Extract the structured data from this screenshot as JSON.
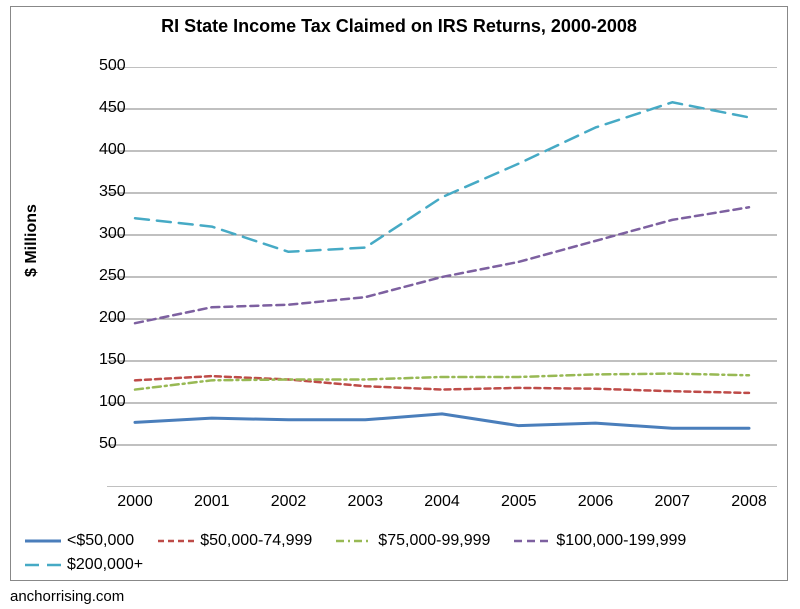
{
  "chart": {
    "type": "line",
    "title": "RI State Income Tax Claimed on IRS Returns,\n2000-2008",
    "title_fontsize": 18,
    "title_fontweight": "bold",
    "background_color": "#ffffff",
    "border_color": "#888888",
    "x": {
      "values": [
        2000,
        2001,
        2002,
        2003,
        2004,
        2005,
        2006,
        2007,
        2008
      ],
      "labels": [
        "2000",
        "2001",
        "2002",
        "2003",
        "2004",
        "2005",
        "2006",
        "2007",
        "2008"
      ],
      "label_fontsize": 16
    },
    "y": {
      "title": "$ Millions",
      "title_fontsize": 16,
      "title_fontweight": "bold",
      "min": 0,
      "max": 500,
      "tick_step": 50,
      "label_fontsize": 16,
      "grid": true,
      "grid_color": "#808080"
    },
    "series": [
      {
        "name": "<$50,000",
        "color": "#4a7ebb",
        "line_width": 3,
        "dash": "solid",
        "values": [
          77,
          82,
          80,
          80,
          87,
          73,
          76,
          70,
          70
        ]
      },
      {
        "name": "$50,000-74,999",
        "color": "#be4b48",
        "line_width": 2.5,
        "dash": "6,4",
        "values": [
          127,
          132,
          128,
          120,
          116,
          118,
          117,
          114,
          112
        ]
      },
      {
        "name": "$75,000-99,999",
        "color": "#98b954",
        "line_width": 2.5,
        "dash": "8,4,2,4",
        "values": [
          116,
          127,
          128,
          128,
          131,
          131,
          134,
          135,
          133
        ]
      },
      {
        "name": "$100,000-199,999",
        "color": "#7d60a0",
        "line_width": 2.5,
        "dash": "8,5",
        "values": [
          195,
          214,
          217,
          226,
          250,
          268,
          293,
          318,
          333
        ]
      },
      {
        "name": "$200,000+",
        "color": "#46aac5",
        "line_width": 2.5,
        "dash": "14,8",
        "values": [
          320,
          310,
          280,
          285,
          345,
          385,
          428,
          458,
          440
        ]
      }
    ],
    "legend": {
      "position": "bottom",
      "fontsize": 16
    }
  },
  "attribution": "anchorrising.com"
}
